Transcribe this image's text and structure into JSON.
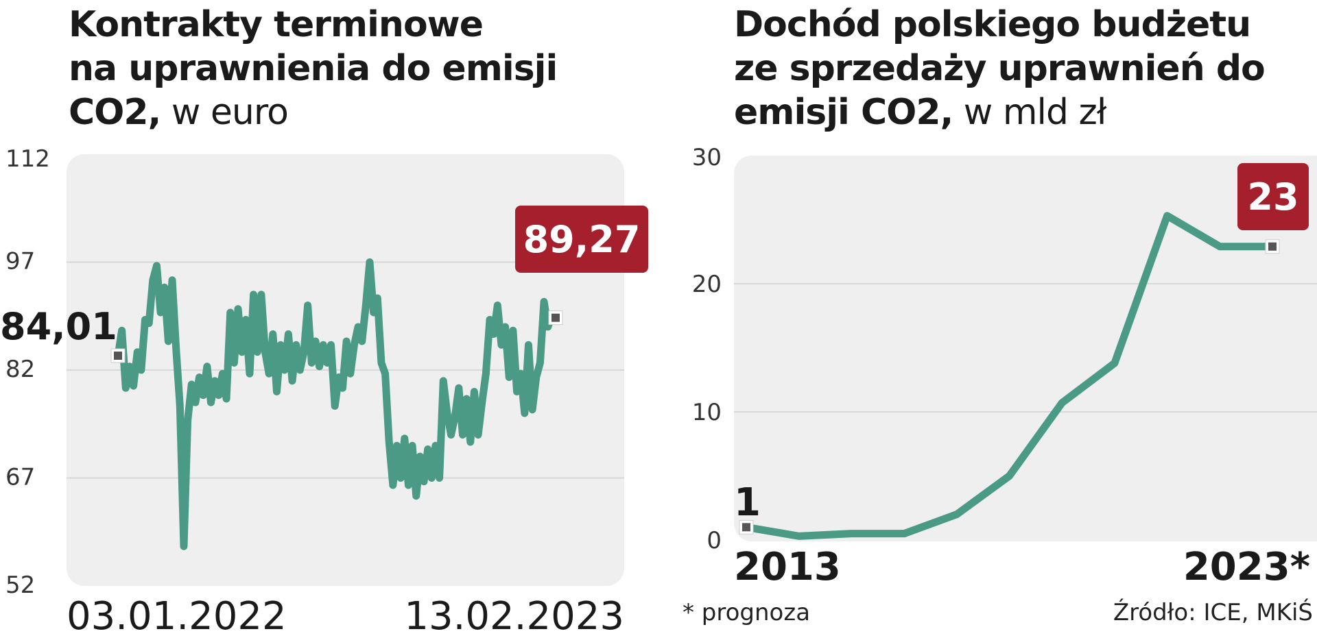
{
  "colors": {
    "line": "#4a9a86",
    "badge": "#a51f2c",
    "panel": "#efefef",
    "grid": "#d8d8d8",
    "text": "#1a1a1a",
    "marker": "#555555"
  },
  "left": {
    "title_bold_1": "Kontrakty terminowe",
    "title_bold_2": "na uprawnienia do emisji",
    "title_bold_3": "CO2,",
    "title_light": " w euro"
  },
  "right": {
    "title_bold_1": "Dochód polskiego budżetu",
    "title_bold_2": "ze sprzedaży uprawnień do",
    "title_bold_3": "emisji CO2,",
    "title_light": " w mld zł"
  },
  "footnote": "* prognoza",
  "source": "Źródło: ICE, MKiŚ",
  "chart_data": [
    {
      "type": "line",
      "ylim": [
        52,
        112
      ],
      "yticks": [
        "112",
        "97",
        "82",
        "67",
        "52"
      ],
      "xlabels": [
        "03.01.2022",
        "13.02.2023"
      ],
      "start_label": "84,01",
      "end_label": "89,27",
      "y": [
        84.0,
        87.5,
        79.5,
        82.5,
        79.8,
        84.5,
        82.0,
        89.0,
        88.5,
        94.5,
        96.5,
        90.0,
        93.5,
        86.0,
        94.5,
        85.0,
        77.0,
        57.5,
        75.0,
        80.0,
        77.5,
        81.0,
        78.5,
        82.5,
        77.5,
        80.5,
        78.5,
        81.5,
        78.0,
        90.0,
        83.0,
        90.5,
        84.5,
        89.0,
        81.5,
        92.5,
        84.5,
        92.5,
        84.5,
        81.5,
        87.0,
        79.0,
        85.5,
        82.0,
        87.0,
        80.5,
        85.5,
        82.0,
        84.5,
        91.0,
        83.0,
        86.0,
        82.5,
        85.5,
        83.0,
        85.5,
        77.0,
        81.0,
        79.5,
        86.0,
        81.5,
        85.5,
        88.0,
        86.0,
        91.0,
        97.0,
        90.0,
        92.0,
        83.0,
        81.5,
        72.0,
        66.0,
        71.5,
        67.0,
        72.5,
        66.0,
        71.5,
        64.5,
        70.0,
        66.5,
        71.0,
        67.0,
        71.5,
        67.0,
        80.5,
        76.0,
        73.0,
        75.5,
        79.5,
        73.0,
        78.0,
        72.0,
        79.0,
        73.0,
        77.5,
        81.5,
        89.0,
        87.0,
        91.0,
        85.5,
        88.0,
        81.0,
        87.5,
        79.0,
        81.5,
        76.0,
        85.5,
        76.5,
        81.0,
        83.0,
        91.5,
        88.0,
        89.5,
        89.27
      ]
    },
    {
      "type": "line",
      "ylim": [
        0,
        30
      ],
      "yticks": [
        "30",
        "20",
        "10",
        "0"
      ],
      "xlabels": [
        "2013",
        "2023*"
      ],
      "x": [
        2013,
        2014,
        2015,
        2016,
        2017,
        2018,
        2019,
        2020,
        2021,
        2022,
        2023
      ],
      "y": [
        1,
        0.3,
        0.5,
        0.5,
        2,
        5,
        10.7,
        13.8,
        25.3,
        22.9,
        22.9
      ],
      "start_label": "1",
      "end_label": "23"
    }
  ]
}
